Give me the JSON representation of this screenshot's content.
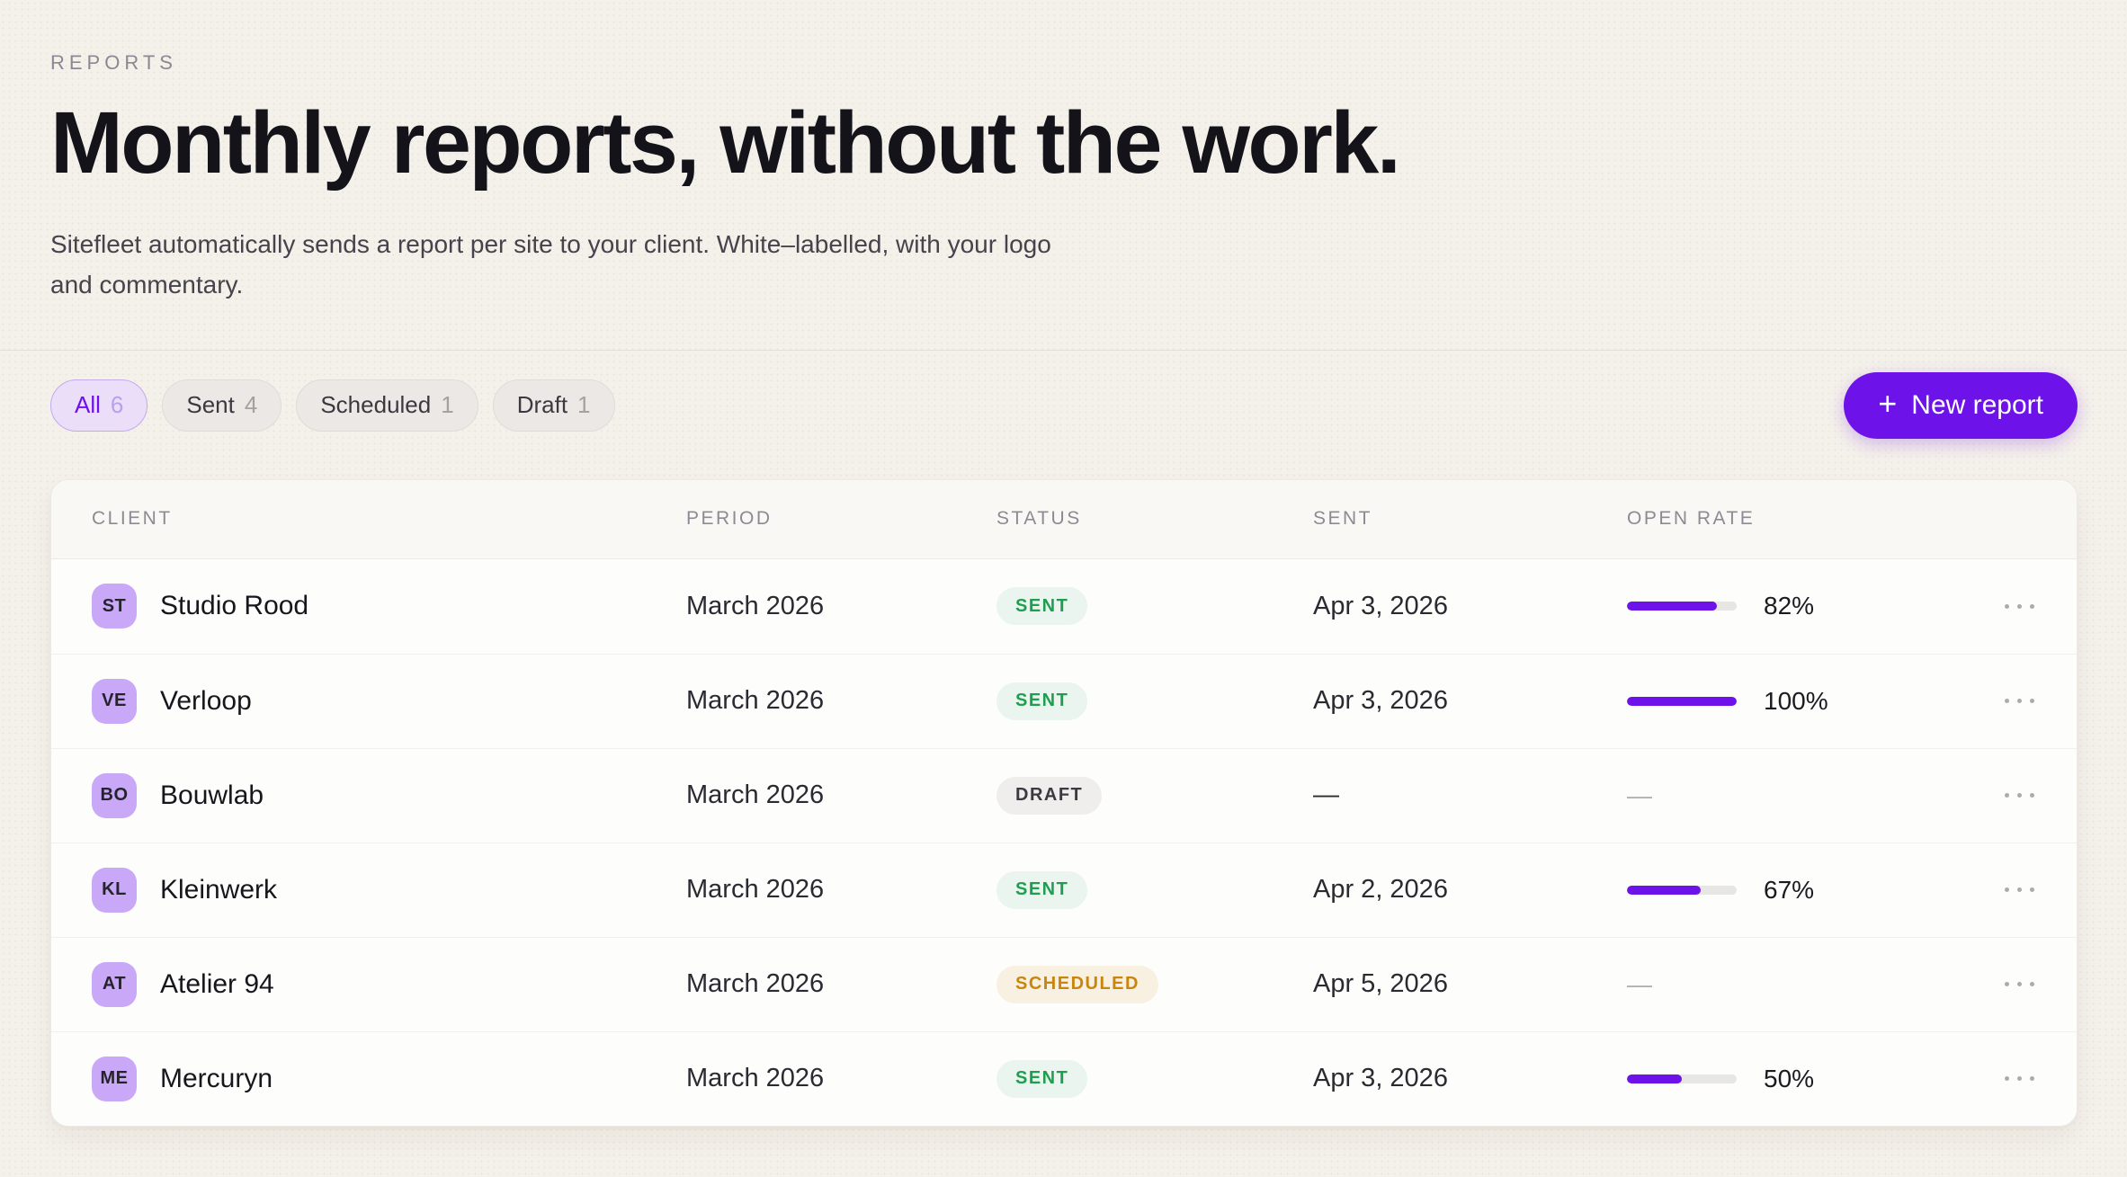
{
  "page": {
    "eyebrow": "REPORTS",
    "title": "Monthly reports, without the work.",
    "subtitle": "Sitefleet automatically sends a report per site to your client. White–labelled, with your logo and commentary."
  },
  "filters": [
    {
      "label": "All",
      "count": "6",
      "active": true
    },
    {
      "label": "Sent",
      "count": "4",
      "active": false
    },
    {
      "label": "Scheduled",
      "count": "1",
      "active": false
    },
    {
      "label": "Draft",
      "count": "1",
      "active": false
    }
  ],
  "toolbar": {
    "new_report_icon": "+",
    "new_report_label": "New report"
  },
  "table": {
    "columns": [
      "CLIENT",
      "PERIOD",
      "STATUS",
      "SENT",
      "OPEN RATE"
    ],
    "rows": [
      {
        "initials": "ST",
        "client": "Studio Rood",
        "period": "March 2026",
        "status": "SENT",
        "status_type": "sent",
        "sent": "Apr 3, 2026",
        "open_rate": 82,
        "open_rate_label": "82%"
      },
      {
        "initials": "VE",
        "client": "Verloop",
        "period": "March 2026",
        "status": "SENT",
        "status_type": "sent",
        "sent": "Apr 3, 2026",
        "open_rate": 100,
        "open_rate_label": "100%"
      },
      {
        "initials": "BO",
        "client": "Bouwlab",
        "period": "March 2026",
        "status": "DRAFT",
        "status_type": "draft",
        "sent": "—",
        "open_rate": null,
        "open_rate_label": "—"
      },
      {
        "initials": "KL",
        "client": "Kleinwerk",
        "period": "March 2026",
        "status": "SENT",
        "status_type": "sent",
        "sent": "Apr 2, 2026",
        "open_rate": 67,
        "open_rate_label": "67%"
      },
      {
        "initials": "AT",
        "client": "Atelier 94",
        "period": "March 2026",
        "status": "SCHEDULED",
        "status_type": "scheduled",
        "sent": "Apr 5, 2026",
        "open_rate": null,
        "open_rate_label": "—"
      },
      {
        "initials": "ME",
        "client": "Mercuryn",
        "period": "March 2026",
        "status": "SENT",
        "status_type": "sent",
        "sent": "Apr 3, 2026",
        "open_rate": 50,
        "open_rate_label": "50%"
      }
    ]
  },
  "colors": {
    "background": "#f4f0ea",
    "accent_purple": "#6d12e9",
    "avatar_purple": "#c8a8f7",
    "sent_green": "#1f9e50",
    "sent_bg": "#e9f5ee",
    "scheduled_amber": "#c8860f",
    "scheduled_bg": "#f8f0e1",
    "draft_gray": "#3b3a42",
    "draft_bg": "#efeeec"
  }
}
